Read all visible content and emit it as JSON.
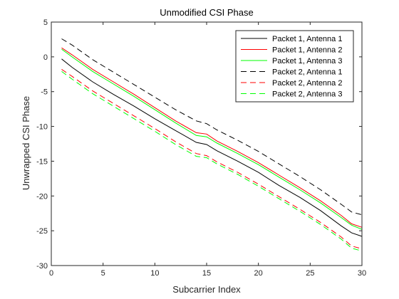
{
  "chart_data": {
    "type": "line",
    "title": "Unmodified CSI Phase",
    "xlabel": "Subcarrier Index",
    "ylabel": "Unwrapped CSI Phase",
    "xlim": [
      0,
      30
    ],
    "ylim": [
      -30,
      5
    ],
    "xticks": [
      0,
      5,
      10,
      15,
      20,
      25,
      30
    ],
    "yticks": [
      -30,
      -25,
      -20,
      -15,
      -10,
      -5,
      0,
      5
    ],
    "grid": false,
    "legend_position": "top-right",
    "x": [
      1,
      2,
      4,
      6,
      8,
      10,
      12,
      14,
      15,
      16,
      18,
      20,
      22,
      24,
      26,
      28,
      29,
      30
    ],
    "series": [
      {
        "name": "Packet 1, Antenna 1",
        "color": "#000000",
        "dash": "solid",
        "values": [
          -0.3,
          -1.5,
          -3.6,
          -5.4,
          -7.1,
          -8.9,
          -10.6,
          -12.3,
          -12.6,
          -13.5,
          -15.0,
          -16.6,
          -18.5,
          -20.2,
          -22.1,
          -24.3,
          -25.3,
          -25.8
        ]
      },
      {
        "name": "Packet 1, Antenna 2",
        "color": "#ff0000",
        "dash": "solid",
        "values": [
          1.3,
          0.3,
          -1.8,
          -3.6,
          -5.4,
          -7.3,
          -9.2,
          -10.9,
          -11.1,
          -12.1,
          -13.6,
          -15.2,
          -17.0,
          -18.8,
          -20.7,
          -22.8,
          -24.0,
          -24.5
        ]
      },
      {
        "name": "Packet 1, Antenna 3",
        "color": "#00ff00",
        "dash": "solid",
        "values": [
          1.1,
          0.0,
          -2.1,
          -3.9,
          -5.7,
          -7.6,
          -9.5,
          -11.3,
          -11.5,
          -12.4,
          -13.9,
          -15.5,
          -17.3,
          -19.1,
          -21.0,
          -23.1,
          -24.2,
          -24.8
        ]
      },
      {
        "name": "Packet 2, Antenna 1",
        "color": "#000000",
        "dash": "dashed",
        "values": [
          2.6,
          1.7,
          -0.4,
          -2.2,
          -4.0,
          -5.8,
          -7.6,
          -9.2,
          -9.6,
          -10.5,
          -12.0,
          -13.6,
          -15.4,
          -17.2,
          -19.1,
          -21.2,
          -22.3,
          -22.7
        ]
      },
      {
        "name": "Packet 2, Antenna 2",
        "color": "#ff0000",
        "dash": "dashed",
        "values": [
          -1.8,
          -2.8,
          -4.9,
          -6.7,
          -8.5,
          -10.3,
          -12.2,
          -13.9,
          -14.2,
          -15.1,
          -16.6,
          -18.3,
          -20.1,
          -21.9,
          -23.8,
          -25.9,
          -27.2,
          -27.6
        ]
      },
      {
        "name": "Packet 2, Antenna 3",
        "color": "#00ff00",
        "dash": "dashed",
        "values": [
          -2.1,
          -3.2,
          -5.3,
          -7.1,
          -8.9,
          -10.7,
          -12.6,
          -14.3,
          -14.5,
          -15.4,
          -16.9,
          -18.6,
          -20.4,
          -22.2,
          -24.1,
          -26.2,
          -27.5,
          -27.9
        ]
      }
    ]
  }
}
